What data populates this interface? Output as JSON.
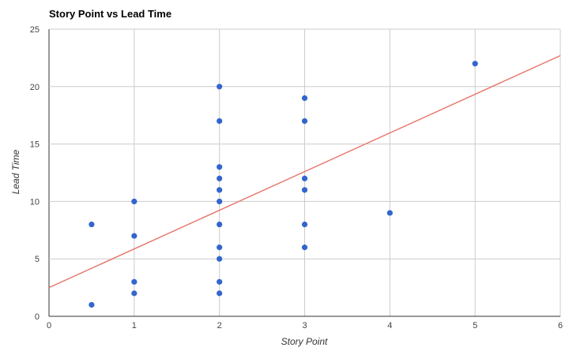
{
  "chart_data": {
    "type": "scatter",
    "title": "Story Point vs Lead Time",
    "xlabel": "Story Point",
    "ylabel": "Lead Time",
    "xlim": [
      0,
      6
    ],
    "ylim": [
      0,
      25
    ],
    "x_ticks": [
      "0",
      "1",
      "2",
      "3",
      "4",
      "5",
      "6"
    ],
    "y_ticks": [
      "0",
      "5",
      "10",
      "15",
      "20",
      "25"
    ],
    "grid": true,
    "legend": "none",
    "series": [
      {
        "points": [
          {
            "x": 0.5,
            "y": 8
          },
          {
            "x": 0.5,
            "y": 1
          },
          {
            "x": 1,
            "y": 10
          },
          {
            "x": 1,
            "y": 7
          },
          {
            "x": 1,
            "y": 3
          },
          {
            "x": 1,
            "y": 2
          },
          {
            "x": 2,
            "y": 20
          },
          {
            "x": 2,
            "y": 17
          },
          {
            "x": 2,
            "y": 13
          },
          {
            "x": 2,
            "y": 12
          },
          {
            "x": 2,
            "y": 11
          },
          {
            "x": 2,
            "y": 10
          },
          {
            "x": 2,
            "y": 8
          },
          {
            "x": 2,
            "y": 6
          },
          {
            "x": 2,
            "y": 5
          },
          {
            "x": 2,
            "y": 3
          },
          {
            "x": 2,
            "y": 2
          },
          {
            "x": 3,
            "y": 19
          },
          {
            "x": 3,
            "y": 17
          },
          {
            "x": 3,
            "y": 12
          },
          {
            "x": 3,
            "y": 11
          },
          {
            "x": 3,
            "y": 8
          },
          {
            "x": 3,
            "y": 6
          },
          {
            "x": 4,
            "y": 9
          },
          {
            "x": 5,
            "y": 22
          }
        ],
        "color": "#3366cc"
      }
    ],
    "trendline": {
      "type": "linear",
      "x": [
        0,
        6
      ],
      "y": [
        2.5,
        22.7
      ],
      "color": "#e67368"
    },
    "gridline_color": "#cccccc"
  }
}
